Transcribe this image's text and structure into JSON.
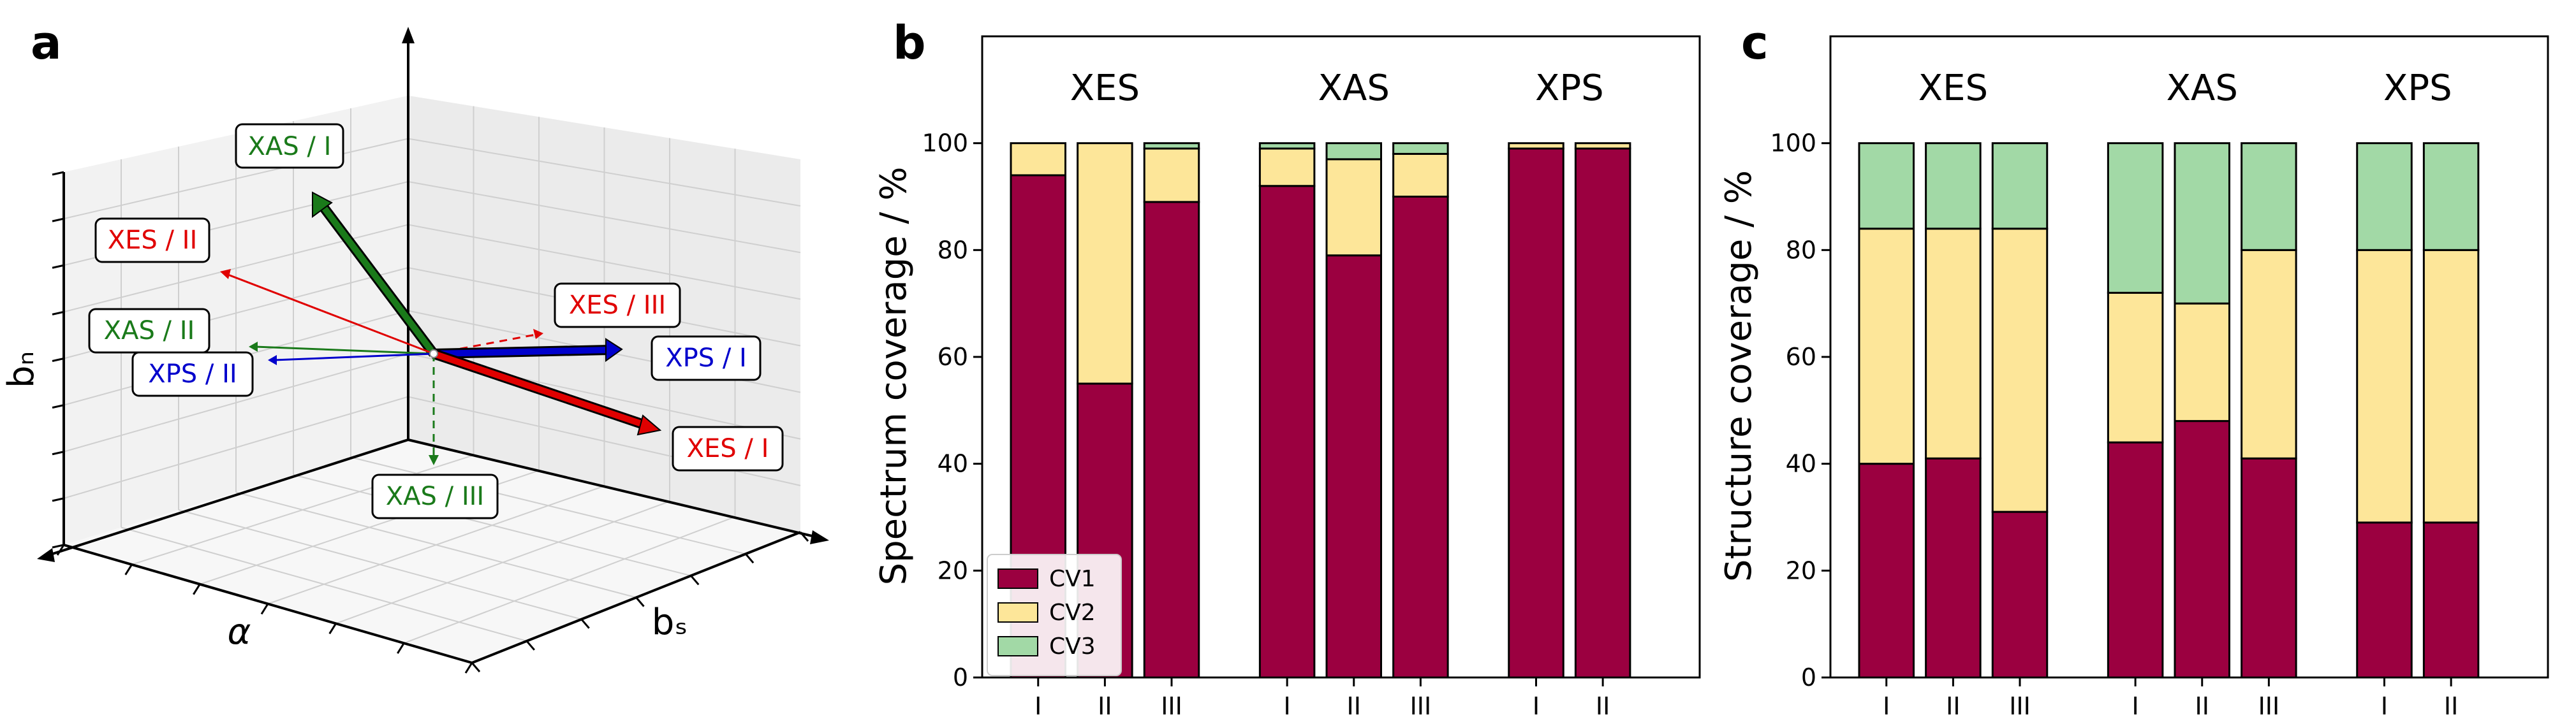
{
  "panels": {
    "a": {
      "letter": "a"
    },
    "b": {
      "letter": "b"
    },
    "c": {
      "letter": "c"
    }
  },
  "panel_a": {
    "axis_labels": {
      "vertical": "bₙ",
      "left": "α",
      "right": "bₛ"
    },
    "vectors": [
      {
        "label": "XAS / I",
        "color": "#1a7a1a",
        "style": "thick"
      },
      {
        "label": "XES / II",
        "color": "#e00000",
        "style": "thin"
      },
      {
        "label": "XAS / II",
        "color": "#1a7a1a",
        "style": "thin"
      },
      {
        "label": "XPS / II",
        "color": "#0000cc",
        "style": "thin"
      },
      {
        "label": "XES / III",
        "color": "#e00000",
        "style": "dashed"
      },
      {
        "label": "XPS / I",
        "color": "#0000cc",
        "style": "thick"
      },
      {
        "label": "XES / I",
        "color": "#e00000",
        "style": "thick"
      },
      {
        "label": "XAS / III",
        "color": "#1a7a1a",
        "style": "dashed"
      }
    ]
  },
  "legend": {
    "entries": [
      {
        "name": "CV1",
        "color": "#9b0040"
      },
      {
        "name": "CV2",
        "color": "#fde699"
      },
      {
        "name": "CV3",
        "color": "#a2d9a6"
      }
    ]
  },
  "chart_data": [
    {
      "type": "bar",
      "stacked": true,
      "ylabel": "Spectrum coverage / %",
      "ylim": [
        0,
        120
      ],
      "yticks": [
        0,
        20,
        40,
        60,
        80,
        100
      ],
      "grid": false,
      "legend_position": "lower-left",
      "groups": [
        {
          "name": "XES",
          "categories": [
            "I",
            "II",
            "III"
          ]
        },
        {
          "name": "XAS",
          "categories": [
            "I",
            "II",
            "III"
          ]
        },
        {
          "name": "XPS",
          "categories": [
            "I",
            "II"
          ]
        }
      ],
      "series": [
        {
          "name": "CV1",
          "values": [
            94,
            55,
            89,
            92,
            79,
            90,
            99,
            99
          ]
        },
        {
          "name": "CV2",
          "values": [
            6,
            45,
            10,
            7,
            18,
            8,
            1,
            1
          ]
        },
        {
          "name": "CV3",
          "values": [
            0,
            0,
            1,
            1,
            3,
            2,
            0,
            0
          ]
        }
      ]
    },
    {
      "type": "bar",
      "stacked": true,
      "ylabel": "Structure coverage / %",
      "ylim": [
        0,
        120
      ],
      "yticks": [
        0,
        20,
        40,
        60,
        80,
        100
      ],
      "grid": false,
      "groups": [
        {
          "name": "XES",
          "categories": [
            "I",
            "II",
            "III"
          ]
        },
        {
          "name": "XAS",
          "categories": [
            "I",
            "II",
            "III"
          ]
        },
        {
          "name": "XPS",
          "categories": [
            "I",
            "II"
          ]
        }
      ],
      "series": [
        {
          "name": "CV1",
          "values": [
            40,
            41,
            31,
            44,
            48,
            41,
            29,
            29
          ]
        },
        {
          "name": "CV2",
          "values": [
            44,
            43,
            53,
            28,
            22,
            39,
            51,
            51
          ]
        },
        {
          "name": "CV3",
          "values": [
            16,
            16,
            16,
            28,
            30,
            20,
            20,
            20
          ]
        }
      ]
    }
  ]
}
